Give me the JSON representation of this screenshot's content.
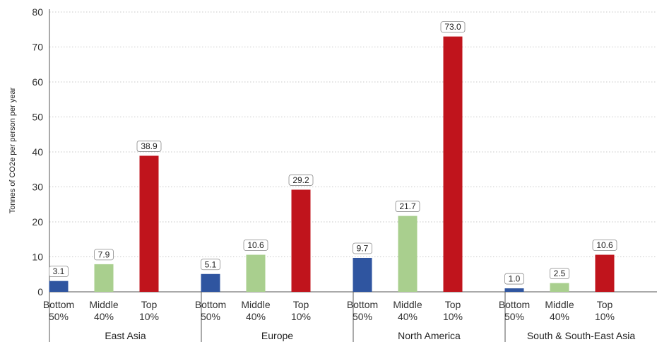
{
  "chart_data": {
    "type": "bar",
    "ylabel": "Tonnes of CO2e per person per year",
    "ylim": [
      0,
      80
    ],
    "yticks": [
      "0",
      "10",
      "20",
      "30",
      "40",
      "50",
      "60",
      "70",
      "80"
    ],
    "grid": "horizontal dotted",
    "colors": {
      "Bottom 50%": "#2f55a0",
      "Middle 40%": "#a9cf8e",
      "Top 10%": "#c0141c"
    },
    "groups": [
      {
        "name": "East Asia",
        "bars": [
          {
            "category": [
              "Bottom",
              "50%"
            ],
            "key": "Bottom 50%",
            "value": 3.1,
            "label": "3.1"
          },
          {
            "category": [
              "Middle",
              "40%"
            ],
            "key": "Middle 40%",
            "value": 7.9,
            "label": "7.9"
          },
          {
            "category": [
              "Top",
              "10%"
            ],
            "key": "Top 10%",
            "value": 38.9,
            "label": "38.9"
          }
        ]
      },
      {
        "name": "Europe",
        "bars": [
          {
            "category": [
              "Bottom",
              "50%"
            ],
            "key": "Bottom 50%",
            "value": 5.1,
            "label": "5.1"
          },
          {
            "category": [
              "Middle",
              "40%"
            ],
            "key": "Middle 40%",
            "value": 10.6,
            "label": "10.6"
          },
          {
            "category": [
              "Top",
              "10%"
            ],
            "key": "Top 10%",
            "value": 29.2,
            "label": "29.2"
          }
        ]
      },
      {
        "name": "North America",
        "bars": [
          {
            "category": [
              "Bottom",
              "50%"
            ],
            "key": "Bottom 50%",
            "value": 9.7,
            "label": "9.7"
          },
          {
            "category": [
              "Middle",
              "40%"
            ],
            "key": "Middle 40%",
            "value": 21.7,
            "label": "21.7"
          },
          {
            "category": [
              "Top",
              "10%"
            ],
            "key": "Top 10%",
            "value": 73.0,
            "label": "73.0"
          }
        ]
      },
      {
        "name": "South & South-East Asia",
        "bars": [
          {
            "category": [
              "Bottom",
              "50%"
            ],
            "key": "Bottom 50%",
            "value": 1.0,
            "label": "1.0"
          },
          {
            "category": [
              "Middle",
              "40%"
            ],
            "key": "Middle 40%",
            "value": 2.5,
            "label": "2.5"
          },
          {
            "category": [
              "Top",
              "10%"
            ],
            "key": "Top 10%",
            "value": 10.6,
            "label": "10.6"
          }
        ]
      }
    ]
  }
}
